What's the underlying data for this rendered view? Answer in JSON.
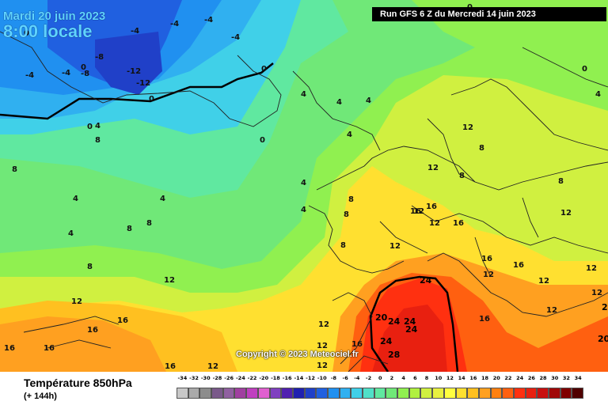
{
  "header": {
    "date": "Mardi 20 juin 2023",
    "time": "8:00 locale",
    "run": "Run GFS 6 Z du Mercredi 14 juin 2023"
  },
  "copyright": "Copyright © 2023 Meteociel.fr",
  "footer": {
    "title": "Température 850hPa",
    "subtitle": "(+ 144h)"
  },
  "legend": {
    "ticks": [
      "-34",
      "-32",
      "-30",
      "-28",
      "-26",
      "-24",
      "-22",
      "-20",
      "-18",
      "-16",
      "-14",
      "-12",
      "-10",
      "-8",
      "-6",
      "-4",
      "-2",
      "0",
      "2",
      "4",
      "6",
      "8",
      "10",
      "12",
      "14",
      "16",
      "18",
      "20",
      "22",
      "24",
      "26",
      "28",
      "30",
      "32",
      "34"
    ],
    "colors": [
      "#c8c8c8",
      "#aaaaaa",
      "#8c8c8c",
      "#7a5a8a",
      "#9060a0",
      "#a040a0",
      "#c040c0",
      "#e060d0",
      "#8040c0",
      "#5020b0",
      "#2020b0",
      "#2040c8",
      "#2060e0",
      "#2090f0",
      "#30b0f0",
      "#40d0e8",
      "#50e0c8",
      "#60e8a0",
      "#70e878",
      "#90f050",
      "#b0f040",
      "#d0f040",
      "#e8f040",
      "#ffff40",
      "#ffe030",
      "#ffc020",
      "#ffa020",
      "#ff8010",
      "#ff6010",
      "#ff3010",
      "#e82010",
      "#c81010",
      "#a00808",
      "#800000",
      "#500000"
    ]
  },
  "labels": [
    {
      "v": "-4"
    },
    {
      "v": "-4"
    },
    {
      "v": "-4"
    },
    {
      "v": "-4"
    },
    {
      "v": "-4"
    },
    {
      "v": "-4"
    },
    {
      "v": "-8"
    },
    {
      "v": "-8"
    },
    {
      "v": "-12"
    },
    {
      "v": "-12"
    },
    {
      "v": "0"
    },
    {
      "v": "0"
    },
    {
      "v": "0"
    },
    {
      "v": "0"
    },
    {
      "v": "0"
    },
    {
      "v": "0"
    },
    {
      "v": "0"
    },
    {
      "v": "0"
    },
    {
      "v": "4"
    },
    {
      "v": "4"
    },
    {
      "v": "4"
    },
    {
      "v": "4"
    },
    {
      "v": "4"
    },
    {
      "v": "4"
    },
    {
      "v": "4"
    },
    {
      "v": "4"
    },
    {
      "v": "4"
    },
    {
      "v": "4"
    },
    {
      "v": "4"
    },
    {
      "v": "8"
    },
    {
      "v": "8"
    },
    {
      "v": "8"
    },
    {
      "v": "8"
    },
    {
      "v": "8"
    },
    {
      "v": "8"
    },
    {
      "v": "8"
    },
    {
      "v": "8"
    },
    {
      "v": "8"
    },
    {
      "v": "8"
    },
    {
      "v": "8"
    },
    {
      "v": "12"
    },
    {
      "v": "12"
    },
    {
      "v": "12"
    },
    {
      "v": "12"
    },
    {
      "v": "12"
    },
    {
      "v": "12"
    },
    {
      "v": "12"
    },
    {
      "v": "12"
    },
    {
      "v": "12"
    },
    {
      "v": "12"
    },
    {
      "v": "12"
    },
    {
      "v": "12"
    },
    {
      "v": "12"
    },
    {
      "v": "12"
    },
    {
      "v": "12"
    },
    {
      "v": "12"
    },
    {
      "v": "12"
    },
    {
      "v": "16"
    },
    {
      "v": "16"
    },
    {
      "v": "16"
    },
    {
      "v": "16"
    },
    {
      "v": "16"
    },
    {
      "v": "16"
    },
    {
      "v": "16"
    },
    {
      "v": "16"
    },
    {
      "v": "16"
    },
    {
      "v": "16"
    },
    {
      "v": "16"
    },
    {
      "v": "16"
    },
    {
      "v": "20"
    },
    {
      "v": "20"
    },
    {
      "v": "20"
    },
    {
      "v": "24"
    },
    {
      "v": "24"
    },
    {
      "v": "24"
    },
    {
      "v": "24"
    },
    {
      "v": "24"
    },
    {
      "v": "28"
    }
  ]
}
